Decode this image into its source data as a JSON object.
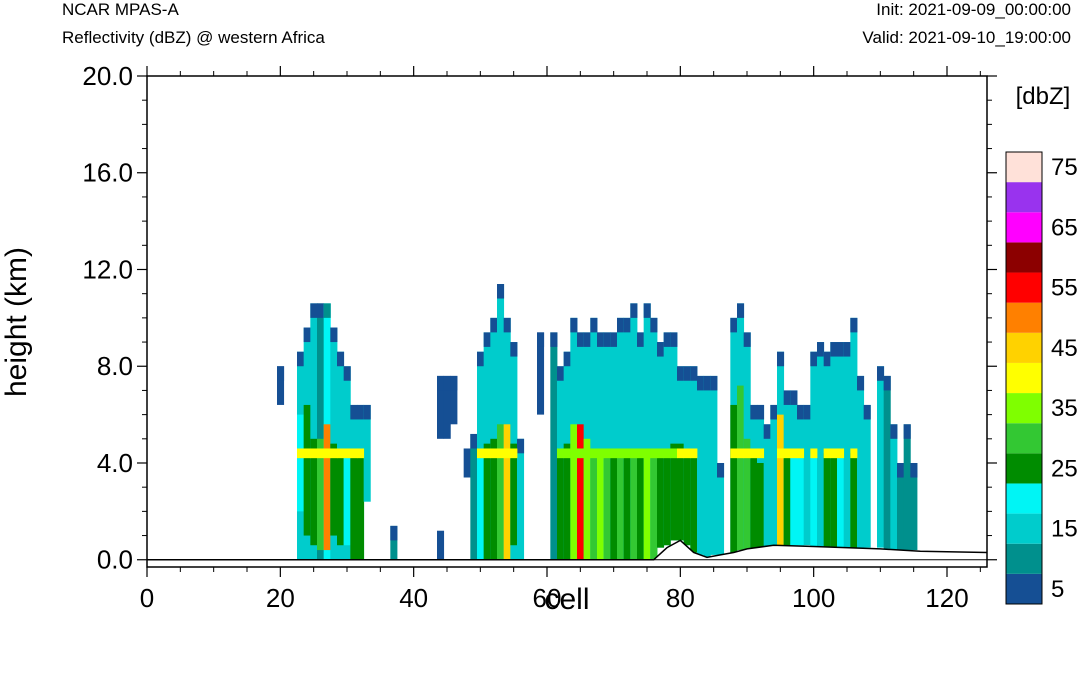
{
  "header": {
    "title": "NCAR MPAS-A",
    "subtitle": "Reflectivity (dBZ) @ western Africa",
    "init": "Init: 2021-09-09_00:00:00",
    "valid": "Valid: 2021-09-10_19:00:00"
  },
  "chart_data": {
    "type": "heatmap",
    "xlabel": "cell",
    "ylabel": "height (km)",
    "xlim": [
      0,
      126
    ],
    "ylim": [
      -0.3,
      20.0
    ],
    "xticks": [
      0,
      20,
      40,
      60,
      80,
      100,
      120
    ],
    "xtick_labels": [
      "0",
      "20",
      "40",
      "60",
      "80",
      "100",
      "120"
    ],
    "yticks": [
      0,
      4,
      8,
      12,
      16,
      20
    ],
    "ytick_labels": [
      "0.0",
      "4.0",
      "8.0",
      "12.0",
      "16.0",
      "20.0"
    ],
    "grid": false,
    "colorbar": {
      "unit_label": "[dbZ]",
      "levels": [
        5,
        10,
        15,
        20,
        25,
        30,
        35,
        40,
        45,
        50,
        55,
        60,
        65,
        70,
        75
      ],
      "labels": [
        "5",
        "15",
        "25",
        "35",
        "45",
        "55",
        "65",
        "75"
      ],
      "colors": [
        "#154f94",
        "#00908d",
        "#00cccc",
        "#00f5f5",
        "#008c00",
        "#33c833",
        "#7fff00",
        "#ffff00",
        "#ffd200",
        "#ff8000",
        "#ff0000",
        "#8c0000",
        "#ff00ff",
        "#9933ee",
        "#ffe1d9"
      ]
    },
    "terrain_km": [
      [
        0,
        0
      ],
      [
        76,
        0
      ],
      [
        78,
        0.5
      ],
      [
        80,
        0.8
      ],
      [
        82,
        0.3
      ],
      [
        84,
        0.1
      ],
      [
        86,
        0.2
      ],
      [
        88,
        0.3
      ],
      [
        90,
        0.45
      ],
      [
        94,
        0.6
      ],
      [
        100,
        0.55
      ],
      [
        110,
        0.45
      ],
      [
        116,
        0.35
      ],
      [
        126,
        0.3
      ]
    ],
    "cells_note": "reflectivity columns: x = cell index, top = echo top height (km), value per height band (dBZ)",
    "columns": [
      {
        "x": 20,
        "top": 8.0,
        "bottom": 6.4,
        "dbz": 5
      },
      {
        "x": 23,
        "top": 8.6,
        "bottom": 0,
        "dbz": 15,
        "core": [
          2.0,
          6.0,
          20
        ]
      },
      {
        "x": 24,
        "top": 9.6,
        "bottom": 0,
        "dbz": 15,
        "core": [
          1.0,
          6.4,
          25
        ]
      },
      {
        "x": 25,
        "top": 10.6,
        "bottom": 0,
        "dbz": 15,
        "core": [
          0.6,
          5.0,
          25
        ]
      },
      {
        "x": 26,
        "top": 10.6,
        "bottom": 0,
        "dbz": 10,
        "core": [
          0.4,
          5.0,
          30
        ]
      },
      {
        "x": 27,
        "top": 10.6,
        "bottom": 0,
        "dbz": 20,
        "core": [
          0.4,
          5.6,
          50
        ]
      },
      {
        "x": 28,
        "top": 9.6,
        "bottom": 0,
        "dbz": 15,
        "core": [
          1.0,
          4.8,
          25
        ]
      },
      {
        "x": 29,
        "top": 8.6,
        "bottom": 0,
        "dbz": 15,
        "core": [
          0.6,
          4.4,
          25
        ]
      },
      {
        "x": 30,
        "top": 8.0,
        "bottom": 0,
        "dbz": 15,
        "core": [
          0.6,
          4.4,
          20
        ]
      },
      {
        "x": 31,
        "top": 6.4,
        "bottom": 0,
        "dbz": 15,
        "core": [
          0.0,
          4.4,
          25
        ]
      },
      {
        "x": 32,
        "top": 6.4,
        "bottom": 0,
        "dbz": 15,
        "core": [
          0.0,
          4.4,
          25
        ]
      },
      {
        "x": 33,
        "top": 6.4,
        "bottom": 2.4,
        "dbz": 15
      },
      {
        "x": 37,
        "top": 1.4,
        "bottom": 0,
        "dbz": 10
      },
      {
        "x": 44,
        "top": 1.2,
        "bottom": 0,
        "dbz": 5
      },
      {
        "x": 44,
        "top": 7.6,
        "bottom": 5.0,
        "dbz": 5
      },
      {
        "x": 45,
        "top": 7.6,
        "bottom": 5.0,
        "dbz": 5
      },
      {
        "x": 46,
        "top": 7.6,
        "bottom": 5.6,
        "dbz": 5
      },
      {
        "x": 48,
        "top": 4.6,
        "bottom": 3.4,
        "dbz": 5
      },
      {
        "x": 49,
        "top": 5.2,
        "bottom": 0,
        "dbz": 10
      },
      {
        "x": 50,
        "top": 8.6,
        "bottom": 0,
        "dbz": 15,
        "core": [
          0.0,
          4.4,
          20
        ]
      },
      {
        "x": 51,
        "top": 9.4,
        "bottom": 0,
        "dbz": 15,
        "core": [
          0.0,
          4.8,
          25
        ]
      },
      {
        "x": 52,
        "top": 10.0,
        "bottom": 0,
        "dbz": 15,
        "core": [
          0.0,
          5.0,
          25
        ]
      },
      {
        "x": 53,
        "top": 11.4,
        "bottom": 0,
        "dbz": 15,
        "core": [
          0.0,
          5.6,
          30
        ]
      },
      {
        "x": 54,
        "top": 10.0,
        "bottom": 0,
        "dbz": 15,
        "core": [
          0.0,
          5.6,
          45
        ]
      },
      {
        "x": 55,
        "top": 9.0,
        "bottom": 0,
        "dbz": 15,
        "core": [
          0.6,
          4.8,
          25
        ]
      },
      {
        "x": 56,
        "top": 5.0,
        "bottom": 0,
        "dbz": 15
      },
      {
        "x": 59,
        "top": 9.4,
        "bottom": 6.0,
        "dbz": 5
      },
      {
        "x": 61,
        "top": 9.4,
        "bottom": 0,
        "dbz": 10
      },
      {
        "x": 62,
        "top": 8.0,
        "bottom": 0,
        "dbz": 15,
        "core": [
          0.0,
          4.4,
          25
        ]
      },
      {
        "x": 63,
        "top": 8.6,
        "bottom": 0,
        "dbz": 15,
        "core": [
          0.0,
          4.8,
          25
        ]
      },
      {
        "x": 64,
        "top": 10.0,
        "bottom": 0,
        "dbz": 15,
        "core": [
          0.0,
          5.6,
          35
        ]
      },
      {
        "x": 65,
        "top": 9.4,
        "bottom": 0,
        "dbz": 15,
        "core": [
          0.0,
          5.6,
          55
        ]
      },
      {
        "x": 66,
        "top": 9.4,
        "bottom": 0,
        "dbz": 15,
        "core": [
          0.0,
          5.0,
          35
        ]
      },
      {
        "x": 67,
        "top": 10.0,
        "bottom": 0,
        "dbz": 15,
        "core": [
          0.0,
          4.4,
          30
        ]
      },
      {
        "x": 68,
        "top": 9.4,
        "bottom": 0,
        "dbz": 15,
        "core": [
          0.0,
          4.4,
          35
        ]
      },
      {
        "x": 69,
        "top": 9.4,
        "bottom": 0,
        "dbz": 15,
        "core": [
          0.0,
          4.4,
          30
        ]
      },
      {
        "x": 70,
        "top": 9.4,
        "bottom": 0,
        "dbz": 15,
        "core": [
          0.0,
          4.4,
          25
        ]
      },
      {
        "x": 71,
        "top": 10.0,
        "bottom": 0,
        "dbz": 15,
        "core": [
          0.0,
          4.4,
          30
        ]
      },
      {
        "x": 72,
        "top": 10.0,
        "bottom": 0,
        "dbz": 15,
        "core": [
          0.0,
          4.4,
          25
        ]
      },
      {
        "x": 73,
        "top": 10.6,
        "bottom": 0,
        "dbz": 15,
        "core": [
          0.0,
          4.4,
          30
        ]
      },
      {
        "x": 74,
        "top": 9.4,
        "bottom": 0,
        "dbz": 15,
        "core": [
          0.0,
          4.4,
          25
        ]
      },
      {
        "x": 75,
        "top": 10.6,
        "bottom": 0,
        "dbz": 15,
        "core": [
          0.0,
          4.4,
          35
        ]
      },
      {
        "x": 76,
        "top": 10.0,
        "bottom": 0,
        "dbz": 15,
        "core": [
          0.0,
          4.4,
          30
        ]
      },
      {
        "x": 77,
        "top": 9.0,
        "bottom": 0.5,
        "dbz": 15,
        "core": [
          0.5,
          4.4,
          25
        ]
      },
      {
        "x": 78,
        "top": 9.4,
        "bottom": 0.6,
        "dbz": 15,
        "core": [
          0.6,
          4.4,
          25
        ]
      },
      {
        "x": 79,
        "top": 9.4,
        "bottom": 0.8,
        "dbz": 15,
        "core": [
          0.8,
          4.8,
          25
        ]
      },
      {
        "x": 80,
        "top": 8.0,
        "bottom": 0.8,
        "dbz": 15,
        "core": [
          0.8,
          4.8,
          25
        ]
      },
      {
        "x": 81,
        "top": 8.0,
        "bottom": 0.6,
        "dbz": 15,
        "core": [
          0.6,
          4.4,
          25
        ]
      },
      {
        "x": 82,
        "top": 8.0,
        "bottom": 0.3,
        "dbz": 15,
        "core": [
          0.3,
          4.4,
          25
        ]
      },
      {
        "x": 83,
        "top": 7.6,
        "bottom": 0.2,
        "dbz": 15
      },
      {
        "x": 84,
        "top": 7.6,
        "bottom": 0.1,
        "dbz": 15
      },
      {
        "x": 85,
        "top": 7.6,
        "bottom": 0.2,
        "dbz": 15
      },
      {
        "x": 86,
        "top": 4.0,
        "bottom": 0.2,
        "dbz": 15
      },
      {
        "x": 88,
        "top": 10.0,
        "bottom": 0.3,
        "dbz": 15,
        "core": [
          0.3,
          6.4,
          25
        ]
      },
      {
        "x": 89,
        "top": 10.6,
        "bottom": 0.4,
        "dbz": 15,
        "core": [
          0.4,
          7.2,
          30
        ]
      },
      {
        "x": 90,
        "top": 9.4,
        "bottom": 0.4,
        "dbz": 15,
        "core": [
          0.4,
          5.0,
          30
        ]
      },
      {
        "x": 91,
        "top": 6.4,
        "bottom": 0.5,
        "dbz": 15,
        "core": [
          0.5,
          4.4,
          25
        ]
      },
      {
        "x": 92,
        "top": 6.4,
        "bottom": 0.5,
        "dbz": 15,
        "core": [
          0.5,
          4.0,
          25
        ]
      },
      {
        "x": 93,
        "top": 5.6,
        "bottom": 0.5,
        "dbz": 15
      },
      {
        "x": 94,
        "top": 6.4,
        "bottom": 0.5,
        "dbz": 15
      },
      {
        "x": 95,
        "top": 8.6,
        "bottom": 0.6,
        "dbz": 15,
        "core": [
          0.6,
          6.0,
          45
        ]
      },
      {
        "x": 96,
        "top": 7.0,
        "bottom": 0.6,
        "dbz": 15,
        "core": [
          0.6,
          4.4,
          25
        ]
      },
      {
        "x": 97,
        "top": 7.0,
        "bottom": 0.6,
        "dbz": 15,
        "core": [
          0.6,
          4.4,
          20
        ]
      },
      {
        "x": 98,
        "top": 6.4,
        "bottom": 0.6,
        "dbz": 15,
        "core": [
          0.6,
          4.4,
          20
        ]
      },
      {
        "x": 99,
        "top": 6.4,
        "bottom": 0.6,
        "dbz": 15
      },
      {
        "x": 100,
        "top": 8.6,
        "bottom": 0.55,
        "dbz": 15,
        "core": [
          0.55,
          4.4,
          20
        ]
      },
      {
        "x": 101,
        "top": 9.0,
        "bottom": 0.55,
        "dbz": 15
      },
      {
        "x": 102,
        "top": 8.6,
        "bottom": 0.5,
        "dbz": 15,
        "core": [
          0.5,
          4.4,
          25
        ]
      },
      {
        "x": 103,
        "top": 9.0,
        "bottom": 0.5,
        "dbz": 15,
        "core": [
          0.5,
          4.4,
          25
        ]
      },
      {
        "x": 104,
        "top": 9.0,
        "bottom": 0.5,
        "dbz": 15,
        "core": [
          0.5,
          4.4,
          20
        ]
      },
      {
        "x": 105,
        "top": 9.0,
        "bottom": 0.5,
        "dbz": 15
      },
      {
        "x": 106,
        "top": 10.0,
        "bottom": 0.5,
        "dbz": 15,
        "core": [
          0.5,
          4.4,
          25
        ]
      },
      {
        "x": 107,
        "top": 7.6,
        "bottom": 0.5,
        "dbz": 15
      },
      {
        "x": 108,
        "top": 6.4,
        "bottom": 0.5,
        "dbz": 15
      },
      {
        "x": 110,
        "top": 8.0,
        "bottom": 0.5,
        "dbz": 15
      },
      {
        "x": 111,
        "top": 7.6,
        "bottom": 0.45,
        "dbz": 10
      },
      {
        "x": 112,
        "top": 5.6,
        "bottom": 0.4,
        "dbz": 15
      },
      {
        "x": 113,
        "top": 4.0,
        "bottom": 0.4,
        "dbz": 10
      },
      {
        "x": 114,
        "top": 5.6,
        "bottom": 0.4,
        "dbz": 10
      },
      {
        "x": 115,
        "top": 4.0,
        "bottom": 0.4,
        "dbz": 10
      }
    ]
  }
}
